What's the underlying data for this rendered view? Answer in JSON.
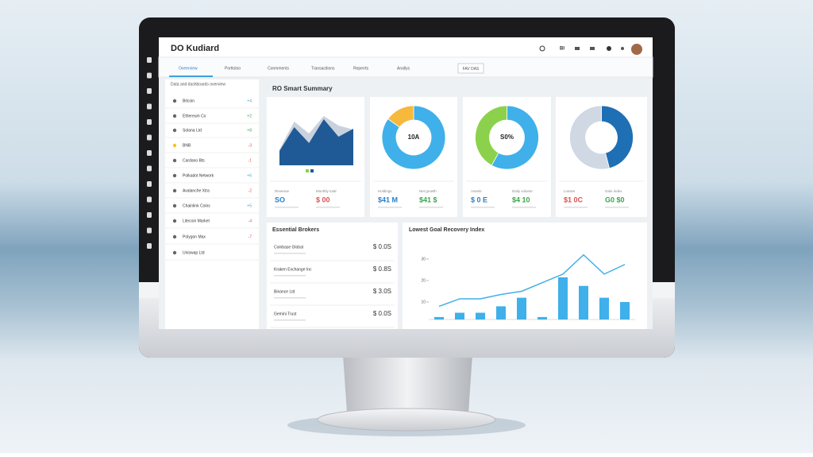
{
  "header": {
    "title": "DO Kudiard",
    "user": "BI"
  },
  "tabs": [
    "Oveerview",
    "Porttoloo",
    "Conmments",
    "Transactiions",
    "Reperrts",
    "Anallys"
  ],
  "tab_button": "FAV DAS",
  "sidebar": {
    "title": "Data and dashboards overview",
    "items": [
      {
        "label": "Bitcoin",
        "badge": "+4",
        "color": "#3fa0d8"
      },
      {
        "label": "Ethereum Co",
        "badge": "+2",
        "color": "#3aa64a"
      },
      {
        "label": "Solana Ltd",
        "badge": "+8",
        "color": "#3aa64a"
      },
      {
        "label": "BNB",
        "badge": "-3",
        "color": "#d9534f"
      },
      {
        "label": "Cardano Bts",
        "badge": "-1",
        "color": "#d9534f"
      },
      {
        "label": "Polkadot Network",
        "badge": "+6",
        "color": "#3fa0d8"
      },
      {
        "label": "Avalanche Xtra",
        "badge": "-2",
        "color": "#d9534f"
      },
      {
        "label": "Chainlink Coins",
        "badge": "+5",
        "color": "#3fa0d8"
      },
      {
        "label": "Litecoin Market",
        "badge": "-4",
        "color": "#d9534f"
      },
      {
        "label": "Polygon Max",
        "badge": "-7",
        "color": "#d9534f"
      },
      {
        "label": "Uniswap Ltd",
        "badge": "",
        "color": "#3fa0d8"
      }
    ]
  },
  "summary_title": "RO Smart Summary",
  "cards": [
    {
      "chart": {
        "type": "area",
        "ylim": [
          0,
          70
        ],
        "series": [
          {
            "color": "#c9d2dc",
            "values": [
              20,
              55,
              40,
              62,
              50,
              45
            ]
          },
          {
            "color": "#1f5a96",
            "values": [
              18,
              48,
              28,
              58,
              36,
              46
            ]
          }
        ]
      },
      "stats": [
        {
          "label": "Revenue",
          "value": "SO",
          "color": "#2a7fc9"
        },
        {
          "label": "Monthly total",
          "value": "$ 00",
          "color": "#d9534f"
        }
      ]
    },
    {
      "chart": {
        "type": "donut",
        "center": "10A",
        "colors": [
          "#3fb0ea",
          "#f6b93b"
        ],
        "values": [
          85,
          15
        ]
      },
      "stats": [
        {
          "label": "Holdings",
          "value": "$41 M",
          "color": "#2a7fc9"
        },
        {
          "label": "Net growth",
          "value": "$41 $",
          "color": "#3aa64a"
        }
      ]
    },
    {
      "chart": {
        "type": "donut",
        "center": "S0%",
        "colors": [
          "#3fb0ea",
          "#8cd14b"
        ],
        "values": [
          58,
          42
        ]
      },
      "stats": [
        {
          "label": "Assets",
          "value": "$ 0 E",
          "color": "#2a7fc9"
        },
        {
          "label": "Daily volume",
          "value": "$4 10",
          "color": "#3aa64a"
        }
      ]
    },
    {
      "chart": {
        "type": "donut",
        "center": "",
        "colors": [
          "#1f6fb5",
          "#cfd8e3"
        ],
        "values": [
          46,
          54
        ]
      },
      "stats": [
        {
          "label": "Losses",
          "value": "$1 0C",
          "color": "#d9534f"
        },
        {
          "label": "Gain index",
          "value": "G0 $0",
          "color": "#3aa64a"
        }
      ]
    }
  ],
  "brokers": {
    "title": "Essential Brokers",
    "rows": [
      {
        "label": "Coinbase Global",
        "value": "$ 0.0S"
      },
      {
        "label": "Kraken Exchange Inc",
        "value": "$ 0.8S"
      },
      {
        "label": "Binance Ltd",
        "value": "$ 3.0S"
      },
      {
        "label": "Gemini Trust",
        "value": "$ 0.0S"
      }
    ]
  },
  "goal_chart": {
    "type": "combo",
    "title": "Lowest Goal Recovery Index",
    "ylim": [
      0,
      35
    ],
    "yticks": [
      10,
      20,
      30
    ],
    "bars": {
      "color": "#3fb0ea",
      "values": [
        3,
        5,
        5,
        8,
        12,
        3,
        21.5,
        17.5,
        12,
        10
      ]
    },
    "line": {
      "color": "#3fb0ea",
      "values": [
        8,
        11.5,
        11.5,
        13.5,
        15,
        19,
        23,
        32,
        23,
        27.5
      ]
    }
  }
}
